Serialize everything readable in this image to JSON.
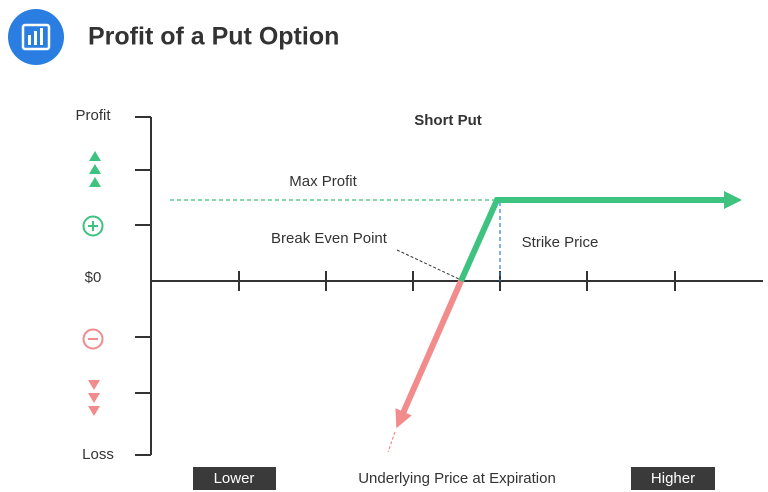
{
  "header": {
    "title": "Profit of a Put Option"
  },
  "diagram": {
    "title": "Short Put",
    "y_labels": {
      "top": "Profit",
      "zero": "$0",
      "bottom": "Loss"
    },
    "annotations": {
      "max_profit": "Max Profit",
      "break_even": "Break Even Point",
      "strike": "Strike Price"
    },
    "x_labels": {
      "lower": "Lower",
      "higher": "Higher",
      "axis": "Underlying Price at Expiration"
    }
  }
}
